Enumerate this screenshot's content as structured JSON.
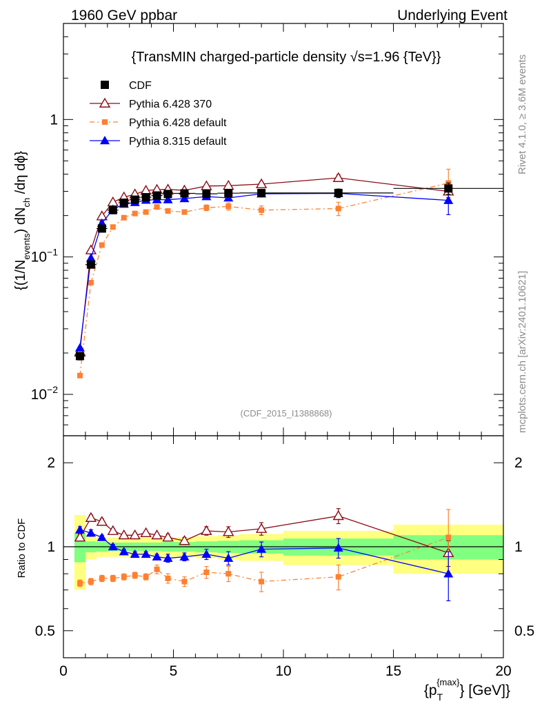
{
  "header": {
    "left": "1960 GeV ppbar",
    "right": "Underlying Event"
  },
  "side_labels": {
    "rivet": "Rivet 4.1.0, ≥ 3.6M events",
    "mcplots": "mcplots.cern.ch [arXiv:2401.10621]"
  },
  "chart_data": [
    {
      "type": "line",
      "panel": "main",
      "title": "{TransMIN charged-particle density √s=1.96 {TeV}}",
      "ylabel": "{(1/N_events) dN_ch /dη dϕ}",
      "ylabel_parts": {
        "a": "{(1/N",
        "sub1": "events",
        "b": ") dN",
        "sub2": "ch",
        "c": " /dη dϕ}"
      },
      "reference": "(CDF_2015_I1388868)",
      "xlim": [
        0,
        20
      ],
      "ylim": [
        0.005,
        5
      ],
      "yscale": "log",
      "x_ticks": [
        "0",
        "5",
        "10",
        "15",
        "20"
      ],
      "y_ticks": [
        {
          "base": "10",
          "exp": "−2"
        },
        {
          "base": "10",
          "exp": "−1"
        },
        {
          "base": "1",
          "exp": ""
        }
      ],
      "legend_position": "top-left",
      "series": [
        {
          "name": "CDF",
          "color": "#000000",
          "marker": "square",
          "x": [
            0.75,
            1.25,
            1.75,
            2.25,
            2.75,
            3.25,
            3.75,
            4.25,
            4.75,
            5.5,
            6.5,
            7.5,
            9.0,
            12.5,
            17.5
          ],
          "xerr": [
            0.25,
            0.25,
            0.25,
            0.25,
            0.25,
            0.25,
            0.25,
            0.25,
            0.25,
            0.5,
            0.5,
            0.5,
            1.0,
            2.5,
            2.5
          ],
          "y": [
            0.019,
            0.088,
            0.161,
            0.219,
            0.248,
            0.261,
            0.272,
            0.28,
            0.287,
            0.29,
            0.288,
            0.291,
            0.292,
            0.292,
            0.315
          ],
          "yerr": [
            0.0012,
            0.004,
            0.006,
            0.007,
            0.008,
            0.008,
            0.009,
            0.009,
            0.01,
            0.011,
            0.012,
            0.013,
            0.016,
            0.02,
            0.03
          ]
        },
        {
          "name": "Pythia 6.428 370",
          "color": "#8b0a14",
          "marker": "open-triangle",
          "dash": "",
          "x": [
            0.75,
            1.25,
            1.75,
            2.25,
            2.75,
            3.25,
            3.75,
            4.25,
            4.75,
            5.5,
            6.5,
            7.5,
            9.0,
            12.5,
            17.5
          ],
          "y": [
            0.0205,
            0.112,
            0.198,
            0.25,
            0.272,
            0.286,
            0.304,
            0.309,
            0.31,
            0.305,
            0.328,
            0.33,
            0.339,
            0.376,
            0.3
          ],
          "yerr": [
            0.0005,
            0.002,
            0.003,
            0.004,
            0.005,
            0.005,
            0.006,
            0.006,
            0.007,
            0.007,
            0.009,
            0.01,
            0.012,
            0.02,
            0.03
          ]
        },
        {
          "name": "Pythia 6.428 default",
          "color": "#ff8030",
          "marker": "small-square",
          "dash": "7,4,2,4",
          "x": [
            0.75,
            1.25,
            1.75,
            2.25,
            2.75,
            3.25,
            3.75,
            4.25,
            4.75,
            5.5,
            6.5,
            7.5,
            9.0,
            12.5,
            17.5
          ],
          "y": [
            0.0137,
            0.065,
            0.122,
            0.165,
            0.193,
            0.207,
            0.212,
            0.231,
            0.216,
            0.212,
            0.228,
            0.233,
            0.219,
            0.225,
            0.345
          ],
          "yerr": [
            0.0004,
            0.002,
            0.003,
            0.004,
            0.005,
            0.006,
            0.006,
            0.008,
            0.008,
            0.008,
            0.011,
            0.014,
            0.016,
            0.025,
            0.09
          ]
        },
        {
          "name": "Pythia 8.315 default",
          "color": "#0000ff",
          "marker": "triangle",
          "dash": "",
          "x": [
            0.75,
            1.25,
            1.75,
            2.25,
            2.75,
            3.25,
            3.75,
            4.25,
            4.75,
            5.5,
            6.5,
            7.5,
            9.0,
            12.5,
            17.5
          ],
          "y": [
            0.0218,
            0.098,
            0.176,
            0.222,
            0.242,
            0.249,
            0.259,
            0.261,
            0.261,
            0.266,
            0.275,
            0.269,
            0.288,
            0.29,
            0.258
          ],
          "yerr": [
            0.0005,
            0.002,
            0.003,
            0.004,
            0.005,
            0.006,
            0.006,
            0.007,
            0.008,
            0.008,
            0.01,
            0.012,
            0.015,
            0.02,
            0.055
          ]
        }
      ]
    },
    {
      "type": "line",
      "panel": "ratio",
      "ylabel": "Ratio to CDF",
      "xlabel": "{p_T^{max}} [GeV]}",
      "xlabel_parts": {
        "a": "{p",
        "sub": "T",
        "sup": "{max}",
        "b": "} [GeV]}"
      },
      "xlim": [
        0,
        20
      ],
      "ylim": [
        0.4,
        2.5
      ],
      "yscale": "log",
      "y_ticks": [
        "0.5",
        "1",
        "2"
      ],
      "bands": {
        "x_edges": [
          [
            0.5,
            1.0
          ],
          [
            1.0,
            1.5
          ],
          [
            1.5,
            2.0
          ],
          [
            2.0,
            2.5
          ],
          [
            2.5,
            3.0
          ],
          [
            3.0,
            3.5
          ],
          [
            3.5,
            4.0
          ],
          [
            4.0,
            4.5
          ],
          [
            4.5,
            5.0
          ],
          [
            5.0,
            6.0
          ],
          [
            6.0,
            7.0
          ],
          [
            7.0,
            8.0
          ],
          [
            8.0,
            10.0
          ],
          [
            10.0,
            15.0
          ],
          [
            15.0,
            20.0
          ]
        ],
        "stat_half_width": [
          0.12,
          0.045,
          0.04,
          0.035,
          0.035,
          0.035,
          0.035,
          0.035,
          0.04,
          0.04,
          0.045,
          0.05,
          0.055,
          0.07,
          0.1
        ],
        "total_half_width": [
          0.3,
          0.1,
          0.08,
          0.08,
          0.08,
          0.08,
          0.08,
          0.08,
          0.08,
          0.08,
          0.09,
          0.1,
          0.11,
          0.14,
          0.2
        ],
        "stat_color": "#80ff80",
        "total_color": "#ffff80"
      },
      "series": [
        {
          "name": "Pythia 6.428 370",
          "color": "#8b0a14",
          "marker": "open-triangle",
          "dash": "",
          "x": [
            0.75,
            1.25,
            1.75,
            2.25,
            2.75,
            3.25,
            3.75,
            4.25,
            4.75,
            5.5,
            6.5,
            7.5,
            9.0,
            12.5,
            17.5
          ],
          "y": [
            1.08,
            1.27,
            1.23,
            1.14,
            1.1,
            1.1,
            1.12,
            1.1,
            1.08,
            1.05,
            1.14,
            1.13,
            1.16,
            1.29,
            0.95
          ],
          "yerr": [
            0.03,
            0.03,
            0.03,
            0.02,
            0.02,
            0.02,
            0.02,
            0.02,
            0.03,
            0.03,
            0.04,
            0.05,
            0.06,
            0.08,
            0.1
          ]
        },
        {
          "name": "Pythia 6.428 default",
          "color": "#ff8030",
          "marker": "small-square",
          "dash": "7,4,2,4",
          "x": [
            0.75,
            1.25,
            1.75,
            2.25,
            2.75,
            3.25,
            3.75,
            4.25,
            4.75,
            5.5,
            6.5,
            7.5,
            9.0,
            12.5,
            17.5
          ],
          "y": [
            0.74,
            0.75,
            0.77,
            0.77,
            0.78,
            0.79,
            0.78,
            0.83,
            0.77,
            0.75,
            0.81,
            0.8,
            0.75,
            0.78,
            1.08
          ],
          "yerr": [
            0.02,
            0.02,
            0.02,
            0.02,
            0.02,
            0.02,
            0.02,
            0.03,
            0.03,
            0.03,
            0.04,
            0.05,
            0.06,
            0.08,
            0.28
          ]
        },
        {
          "name": "Pythia 8.315 default",
          "color": "#0000ff",
          "marker": "triangle",
          "dash": "",
          "x": [
            0.75,
            1.25,
            1.75,
            2.25,
            2.75,
            3.25,
            3.75,
            4.25,
            4.75,
            5.5,
            6.5,
            7.5,
            9.0,
            12.5,
            17.5
          ],
          "y": [
            1.15,
            1.12,
            1.08,
            1.0,
            0.96,
            0.94,
            0.94,
            0.92,
            0.91,
            0.92,
            0.94,
            0.91,
            0.98,
            0.99,
            0.8
          ],
          "yerr": [
            0.03,
            0.03,
            0.02,
            0.02,
            0.02,
            0.02,
            0.02,
            0.02,
            0.03,
            0.03,
            0.04,
            0.05,
            0.06,
            0.08,
            0.16
          ]
        }
      ]
    }
  ]
}
